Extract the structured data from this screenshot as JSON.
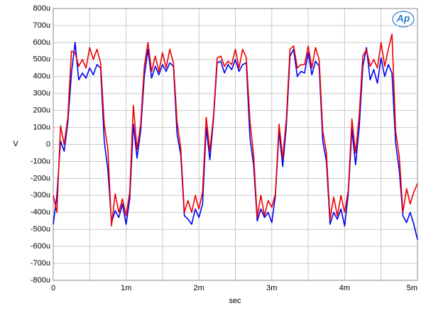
{
  "chart_data": {
    "type": "line",
    "logo": "Ap",
    "ylabel": "V",
    "xlabel": "sec",
    "xlim": [
      0,
      5
    ],
    "ylim": [
      -800,
      800
    ],
    "xticks": [
      0,
      {
        "value": 1,
        "label": "1m"
      },
      {
        "value": 2,
        "label": "2m"
      },
      {
        "value": 3,
        "label": "3m"
      },
      {
        "value": 4,
        "label": "4m"
      },
      {
        "value": 5,
        "label": "5m"
      }
    ],
    "xminor": [
      0.5,
      1.5,
      2.5,
      3.5,
      4.5
    ],
    "yticks": [
      {
        "value": 800,
        "label": "800u"
      },
      {
        "value": 700,
        "label": "700u"
      },
      {
        "value": 600,
        "label": "600u"
      },
      {
        "value": 500,
        "label": "500u"
      },
      {
        "value": 400,
        "label": "400u"
      },
      {
        "value": 300,
        "label": "300u"
      },
      {
        "value": 200,
        "label": "200u"
      },
      {
        "value": 100,
        "label": "100u"
      },
      0,
      {
        "value": -100,
        "label": "-100u"
      },
      {
        "value": -200,
        "label": "-200u"
      },
      {
        "value": -300,
        "label": "-300u"
      },
      {
        "value": -400,
        "label": "-400u"
      },
      {
        "value": -500,
        "label": "-500u"
      },
      {
        "value": -600,
        "label": "-600u"
      },
      {
        "value": -700,
        "label": "-700u"
      },
      {
        "value": -800,
        "label": "-800u"
      }
    ],
    "grid": true,
    "x": [
      0,
      0.05,
      0.1,
      0.15,
      0.2,
      0.25,
      0.3,
      0.35,
      0.4,
      0.45,
      0.5,
      0.55,
      0.6,
      0.65,
      0.7,
      0.75,
      0.8,
      0.85,
      0.9,
      0.95,
      1,
      1.05,
      1.1,
      1.15,
      1.2,
      1.25,
      1.3,
      1.35,
      1.4,
      1.45,
      1.5,
      1.55,
      1.6,
      1.65,
      1.7,
      1.75,
      1.8,
      1.85,
      1.9,
      1.95,
      2,
      2.05,
      2.1,
      2.15,
      2.2,
      2.25,
      2.3,
      2.35,
      2.4,
      2.45,
      2.5,
      2.55,
      2.6,
      2.65,
      2.7,
      2.75,
      2.8,
      2.85,
      2.9,
      2.95,
      3,
      3.05,
      3.1,
      3.15,
      3.2,
      3.25,
      3.3,
      3.35,
      3.4,
      3.45,
      3.5,
      3.55,
      3.6,
      3.65,
      3.7,
      3.75,
      3.8,
      3.85,
      3.9,
      3.95,
      4,
      4.05,
      4.1,
      4.15,
      4.2,
      4.25,
      4.3,
      4.35,
      4.4,
      4.45,
      4.5,
      4.55,
      4.6,
      4.65,
      4.7,
      4.75,
      4.8,
      4.85,
      4.9,
      4.95,
      5
    ],
    "series": [
      {
        "color": "#0000ee",
        "values": [
          -470,
          -300,
          20,
          -40,
          130,
          420,
          600,
          380,
          420,
          390,
          450,
          410,
          470,
          450,
          20,
          -150,
          -460,
          -390,
          -430,
          -350,
          -470,
          -320,
          120,
          -80,
          80,
          400,
          560,
          390,
          460,
          410,
          470,
          430,
          480,
          460,
          60,
          -60,
          -420,
          -440,
          -470,
          -380,
          -430,
          -350,
          100,
          -90,
          150,
          480,
          490,
          420,
          470,
          440,
          500,
          430,
          470,
          480,
          40,
          -120,
          -450,
          -380,
          -430,
          -400,
          -460,
          -300,
          80,
          -130,
          110,
          520,
          560,
          400,
          430,
          420,
          540,
          410,
          490,
          460,
          20,
          -100,
          -470,
          -400,
          -440,
          -380,
          -480,
          -290,
          90,
          -120,
          100,
          460,
          570,
          380,
          440,
          360,
          510,
          400,
          470,
          420,
          10,
          -150,
          -420,
          -460,
          -400,
          -470,
          -560
        ]
      },
      {
        "color": "#ee0000",
        "values": [
          -300,
          -400,
          110,
          0,
          160,
          550,
          540,
          460,
          500,
          450,
          570,
          500,
          560,
          480,
          120,
          -30,
          -480,
          -290,
          -400,
          -320,
          -420,
          -280,
          230,
          -30,
          120,
          460,
          600,
          430,
          520,
          430,
          540,
          450,
          560,
          480,
          130,
          -20,
          -400,
          -330,
          -400,
          -300,
          -380,
          -280,
          160,
          -40,
          170,
          510,
          520,
          460,
          490,
          470,
          560,
          450,
          560,
          510,
          140,
          -60,
          -430,
          -300,
          -420,
          -330,
          -370,
          -290,
          120,
          -80,
          150,
          560,
          580,
          450,
          470,
          470,
          580,
          450,
          570,
          500,
          80,
          -50,
          -440,
          -310,
          -420,
          -300,
          -400,
          -270,
          150,
          -50,
          170,
          520,
          560,
          460,
          500,
          450,
          600,
          460,
          560,
          650,
          80,
          -70,
          -400,
          -260,
          -350,
          -280,
          -230
        ]
      }
    ]
  }
}
